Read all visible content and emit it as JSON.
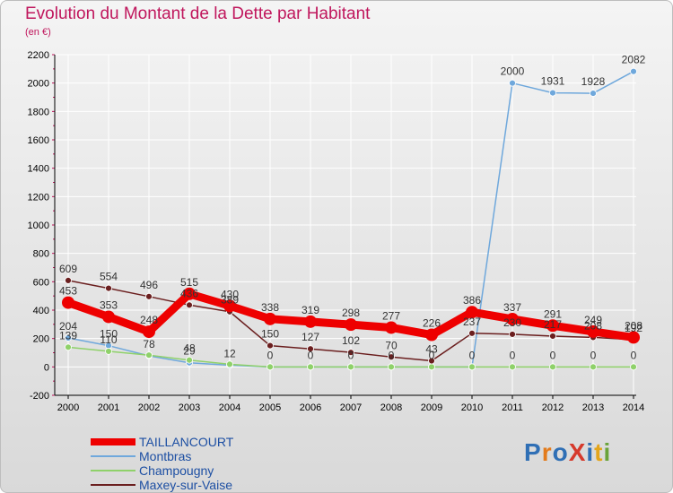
{
  "header": {
    "title": "Evolution du Montant de la Dette par Habitant",
    "subtitle": "(en €)"
  },
  "logo": {
    "text": "ProXiti",
    "colors": [
      "#2f6fb5",
      "#e37b1c",
      "#2f6fb5",
      "#d63a2c",
      "#2f6fb5",
      "#e3a51c",
      "#6aa33a"
    ]
  },
  "colors": {
    "title": "#c0175d",
    "legend_text": "#1d4fa3",
    "grid": "#ffffff",
    "axis": "#000000",
    "tick_mark": "#c0175d"
  },
  "chart_data": {
    "type": "line",
    "title": "Evolution du Montant de la Dette par Habitant",
    "subtitle": "(en €)",
    "x": [
      "2000",
      "2001",
      "2002",
      "2003",
      "2004",
      "2005",
      "2006",
      "2007",
      "2008",
      "2009",
      "2010",
      "2011",
      "2012",
      "2013",
      "2014"
    ],
    "ylim": [
      -200,
      2200
    ],
    "yticks": [
      -200,
      0,
      200,
      400,
      600,
      800,
      1000,
      1200,
      1400,
      1600,
      1800,
      2000,
      2200
    ],
    "grid": true,
    "legend_position": "bottom-left",
    "series": [
      {
        "name": "TAILLANCOURT",
        "color": "#ee0000",
        "values": [
          453,
          353,
          248,
          515,
          430,
          338,
          319,
          298,
          277,
          226,
          386,
          337,
          291,
          249,
          208
        ],
        "labels": [
          "453",
          "353",
          "248",
          "515",
          "430",
          "338",
          "319",
          "298",
          "277",
          "226",
          "386",
          "337",
          "291",
          "249",
          "208"
        ]
      },
      {
        "name": "Montbras",
        "color": "#6fa8dc",
        "values": [
          204,
          150,
          78,
          29,
          12,
          0,
          0,
          0,
          0,
          0,
          0,
          2000,
          1931,
          1928,
          2082
        ],
        "labels": [
          "204",
          "150",
          "78",
          "29",
          "12",
          "0",
          "0",
          "0",
          "0",
          "0",
          "0",
          "2000",
          "1931",
          "1928",
          "2082"
        ]
      },
      {
        "name": "Champougny",
        "color": "#8fd16a",
        "values": [
          139,
          110,
          83,
          48,
          19,
          0,
          0,
          0,
          0,
          0,
          0,
          0,
          0,
          0,
          0
        ],
        "labels": [
          "139",
          "110",
          "",
          "48",
          "",
          "",
          "",
          "",
          "",
          "",
          "",
          "0",
          "0",
          "0",
          "0"
        ]
      },
      {
        "name": "Maxey-sur-Vaise",
        "color": "#6b1f1f",
        "values": [
          609,
          554,
          496,
          436,
          389,
          150,
          127,
          102,
          70,
          43,
          237,
          230,
          217,
          208,
          192
        ],
        "labels": [
          "609",
          "554",
          "496",
          "436",
          "389",
          "150",
          "127",
          "102",
          "70",
          "43",
          "237",
          "230",
          "217",
          "208",
          "192"
        ]
      }
    ]
  }
}
